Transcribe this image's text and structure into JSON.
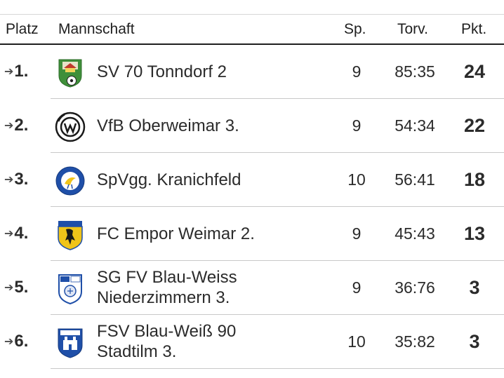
{
  "table": {
    "headers": {
      "rank": "Platz",
      "team": "Mannschaft",
      "played": "Sp.",
      "goals": "Torv.",
      "points": "Pkt."
    },
    "rows": [
      {
        "rank": "1.",
        "team_line1": "SV 70 Tonndorf 2",
        "team_line2": "",
        "played": "9",
        "goals": "85:35",
        "points": "24",
        "logo_icon": "tonndorf-crest-icon"
      },
      {
        "rank": "2.",
        "team_line1": "VfB Oberweimar 3.",
        "team_line2": "",
        "played": "9",
        "goals": "54:34",
        "points": "22",
        "logo_icon": "oberweimar-crest-icon"
      },
      {
        "rank": "3.",
        "team_line1": "SpVgg. Kranichfeld",
        "team_line2": "",
        "played": "10",
        "goals": "56:41",
        "points": "18",
        "logo_icon": "kranichfeld-crest-icon"
      },
      {
        "rank": "4.",
        "team_line1": "FC Empor Weimar 2.",
        "team_line2": "",
        "played": "9",
        "goals": "45:43",
        "points": "13",
        "logo_icon": "empor-weimar-crest-icon"
      },
      {
        "rank": "5.",
        "team_line1": "SG FV Blau-Weiss",
        "team_line2": "Niederzimmern 3.",
        "played": "9",
        "goals": "36:76",
        "points": "3",
        "logo_icon": "niederzimmern-crest-icon"
      },
      {
        "rank": "6.",
        "team_line1": "FSV Blau-Weiß 90",
        "team_line2": "Stadtilm 3.",
        "played": "10",
        "goals": "35:82",
        "points": "3",
        "logo_icon": "stadtilm-crest-icon"
      }
    ],
    "arrow_icon": "right-arrow-icon"
  }
}
